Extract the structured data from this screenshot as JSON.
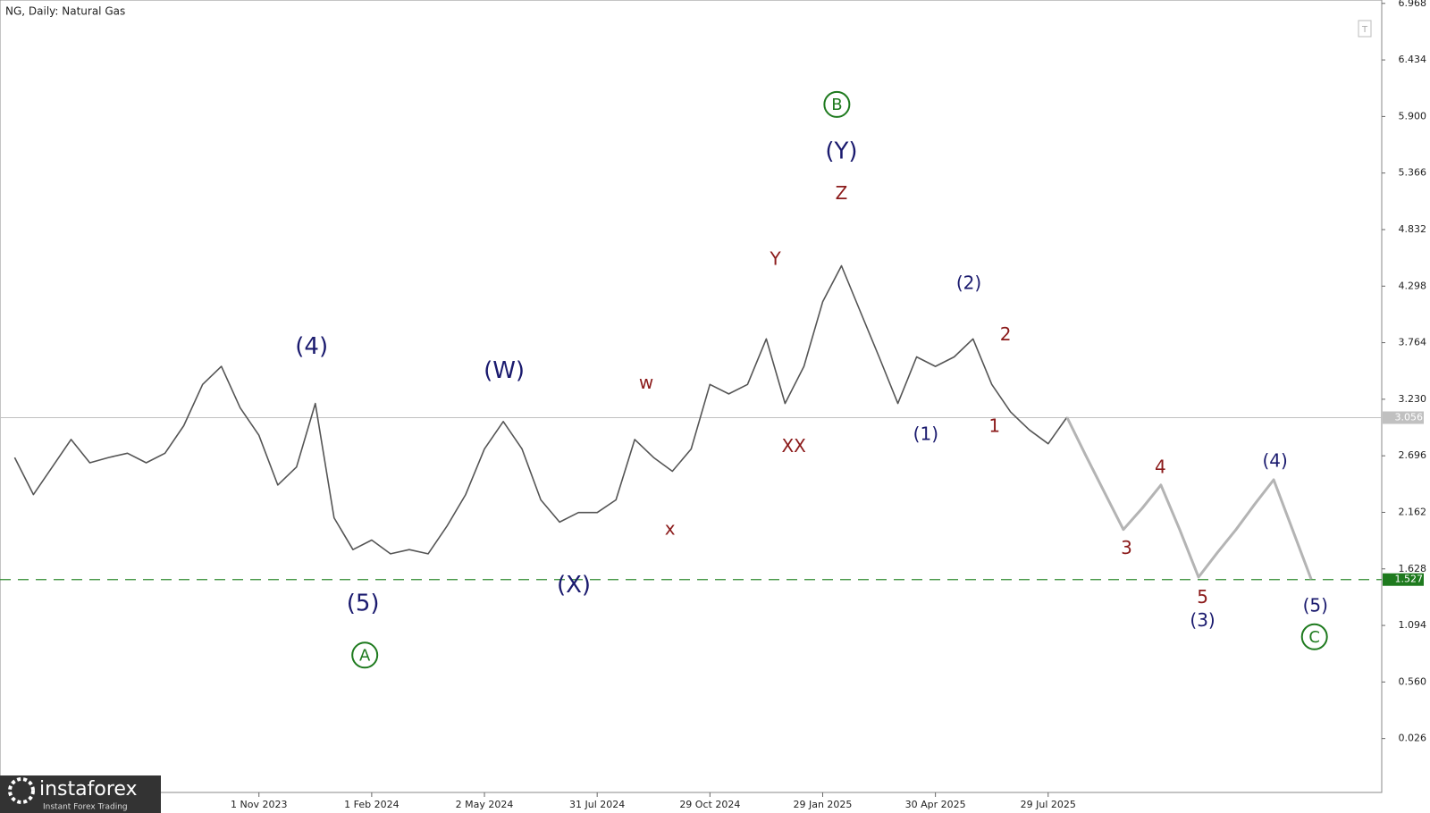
{
  "chart_data": {
    "type": "line",
    "title": "NG, Daily:  Natural Gas",
    "watermark": {
      "name": "instaforex",
      "tagline": "Instant Forex Trading"
    },
    "categories": [
      null,
      null,
      null,
      null,
      null,
      null,
      null,
      null,
      null,
      null,
      null,
      null,
      null,
      "1 Nov 2023",
      null,
      null,
      null,
      null,
      null,
      "1 Feb 2024",
      null,
      null,
      null,
      null,
      null,
      "2 May 2024",
      null,
      null,
      null,
      null,
      null,
      "31 Jul 2024",
      null,
      null,
      null,
      null,
      null,
      "29 Oct 2024",
      null,
      null,
      null,
      null,
      null,
      "29 Jan 2025",
      null,
      null,
      null,
      null,
      null,
      "30 Apr 2025",
      null,
      null,
      null,
      null,
      null,
      "29 Jul 2025",
      null,
      null,
      null,
      null,
      null,
      null,
      null,
      null,
      null,
      null,
      null,
      null,
      null,
      null,
      null
    ],
    "series": [
      {
        "color": "#555555",
        "values": [
          2.68,
          2.33,
          2.59,
          2.85,
          2.63,
          2.68,
          2.72,
          2.63,
          2.72,
          2.98,
          3.37,
          3.54,
          3.15,
          2.89,
          2.42,
          2.59,
          3.19,
          2.11,
          1.81,
          1.9,
          1.77,
          1.81,
          1.77,
          2.03,
          2.33,
          2.76,
          3.02,
          2.76,
          2.28,
          2.07,
          2.16,
          2.16,
          2.28,
          2.85,
          2.68,
          2.55,
          2.76,
          3.37,
          3.28,
          3.37,
          3.8,
          3.19,
          3.54,
          4.15,
          4.49,
          4.06,
          3.63,
          3.19,
          3.63,
          3.54,
          3.63,
          3.8,
          3.37,
          3.11,
          2.94,
          2.81,
          3.06,
          null,
          null,
          null,
          null,
          null,
          null,
          null,
          null,
          null,
          null,
          null,
          null,
          null,
          null
        ]
      },
      {
        "color": "#b4b4b4",
        "values": [
          null,
          null,
          null,
          null,
          null,
          null,
          null,
          null,
          null,
          null,
          null,
          null,
          null,
          null,
          null,
          null,
          null,
          null,
          null,
          null,
          null,
          null,
          null,
          null,
          null,
          null,
          null,
          null,
          null,
          null,
          null,
          null,
          null,
          null,
          null,
          null,
          null,
          null,
          null,
          null,
          null,
          null,
          null,
          null,
          null,
          null,
          null,
          null,
          null,
          null,
          null,
          null,
          null,
          null,
          null,
          null,
          3.06,
          2.7,
          2.35,
          2.0,
          2.2,
          2.42,
          2.0,
          1.55,
          1.78,
          2.0,
          2.24,
          2.47,
          2.0,
          1.53,
          null
        ]
      }
    ],
    "ylim": [
      -0.5,
      7.0
    ],
    "yticks": [
      6.968,
      6.434,
      {
        "value": 5.9,
        "label": "5.900"
      },
      5.366,
      4.832,
      4.298,
      3.764,
      {
        "value": 3.23,
        "label": "3.230"
      },
      2.696,
      2.162,
      1.628,
      1.094,
      {
        "value": 0.56,
        "label": "0.560"
      },
      0.026
    ],
    "hlines": [
      {
        "value": 3.056,
        "color": "#c0c0c0",
        "label_bg": "#c0c0c0",
        "dashed": false
      },
      {
        "value": 1.527,
        "color": "#2e8b2e",
        "label_bg": "#1e7a1e",
        "dashed": true
      }
    ],
    "annotations": [
      {
        "text": "(4)",
        "color": "#1a1a6e",
        "circled": false
      },
      {
        "text": "(5)",
        "color": "#1a1a6e",
        "circled": false
      },
      {
        "text": "A",
        "color": "#1e7a1e",
        "circled": true
      },
      {
        "text": "(W)",
        "color": "#1a1a6e",
        "circled": false
      },
      {
        "text": "(X)",
        "color": "#1a1a6e",
        "circled": false
      },
      {
        "text": "w",
        "color": "#8b1a1a",
        "circled": false
      },
      {
        "text": "x",
        "color": "#8b1a1a",
        "circled": false
      },
      {
        "text": "Y",
        "color": "#8b1a1a",
        "circled": false
      },
      {
        "text": "XX",
        "color": "#8b1a1a",
        "circled": false
      },
      {
        "text": "Z",
        "color": "#8b1a1a",
        "circled": false
      },
      {
        "text": "(Y)",
        "color": "#1a1a6e",
        "circled": false
      },
      {
        "text": "B",
        "color": "#1e7a1e",
        "circled": true
      },
      {
        "text": "(1)",
        "color": "#1a1a6e",
        "circled": false
      },
      {
        "text": "(2)",
        "color": "#1a1a6e",
        "circled": false
      },
      {
        "text": "2",
        "color": "#8b1a1a",
        "circled": false
      },
      {
        "text": "1",
        "color": "#8b1a1a",
        "circled": false
      },
      {
        "text": "3",
        "color": "#8b1a1a",
        "circled": false
      },
      {
        "text": "4",
        "color": "#8b1a1a",
        "circled": false
      },
      {
        "text": "5",
        "color": "#8b1a1a",
        "circled": false
      },
      {
        "text": "(3)",
        "color": "#1a1a6e",
        "circled": false
      },
      {
        "text": "(4)",
        "color": "#1a1a6e",
        "circled": false
      },
      {
        "text": "(5)",
        "color": "#1a1a6e",
        "circled": false
      },
      {
        "text": "C",
        "color": "#1e7a1e",
        "circled": true
      }
    ]
  }
}
